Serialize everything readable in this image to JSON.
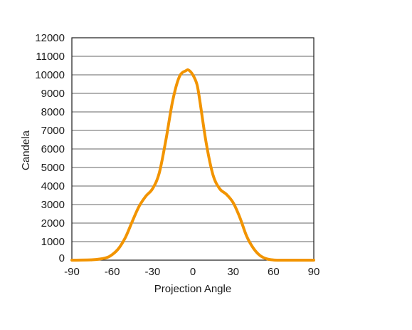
{
  "chart_data": {
    "type": "line",
    "title": "",
    "xlabel": "Projection Angle",
    "ylabel": "Candela",
    "xlim": [
      -90,
      90
    ],
    "ylim": [
      0,
      12000
    ],
    "x_ticks": [
      -90,
      -60,
      -30,
      0,
      30,
      60,
      90
    ],
    "y_ticks": [
      0,
      1000,
      2000,
      3000,
      4000,
      5000,
      6000,
      7000,
      8000,
      9000,
      10000,
      11000,
      12000
    ],
    "grid": "horizontal",
    "legend": "none",
    "series": [
      {
        "color": "#f29400",
        "x": [
          -90,
          -75,
          -65,
          -60,
          -55,
          -50,
          -45,
          -40,
          -35,
          -30,
          -25,
          -20,
          -15,
          -10,
          -5,
          -3,
          0,
          3,
          5,
          10,
          15,
          20,
          25,
          30,
          35,
          40,
          45,
          50,
          55,
          60,
          65,
          75,
          90
        ],
        "y": [
          0,
          20,
          120,
          300,
          650,
          1250,
          2100,
          2900,
          3450,
          3850,
          4700,
          6500,
          8600,
          9900,
          10230,
          10250,
          10000,
          9500,
          8700,
          6300,
          4600,
          3850,
          3550,
          3100,
          2300,
          1300,
          650,
          250,
          70,
          10,
          0,
          0,
          0
        ]
      }
    ]
  }
}
